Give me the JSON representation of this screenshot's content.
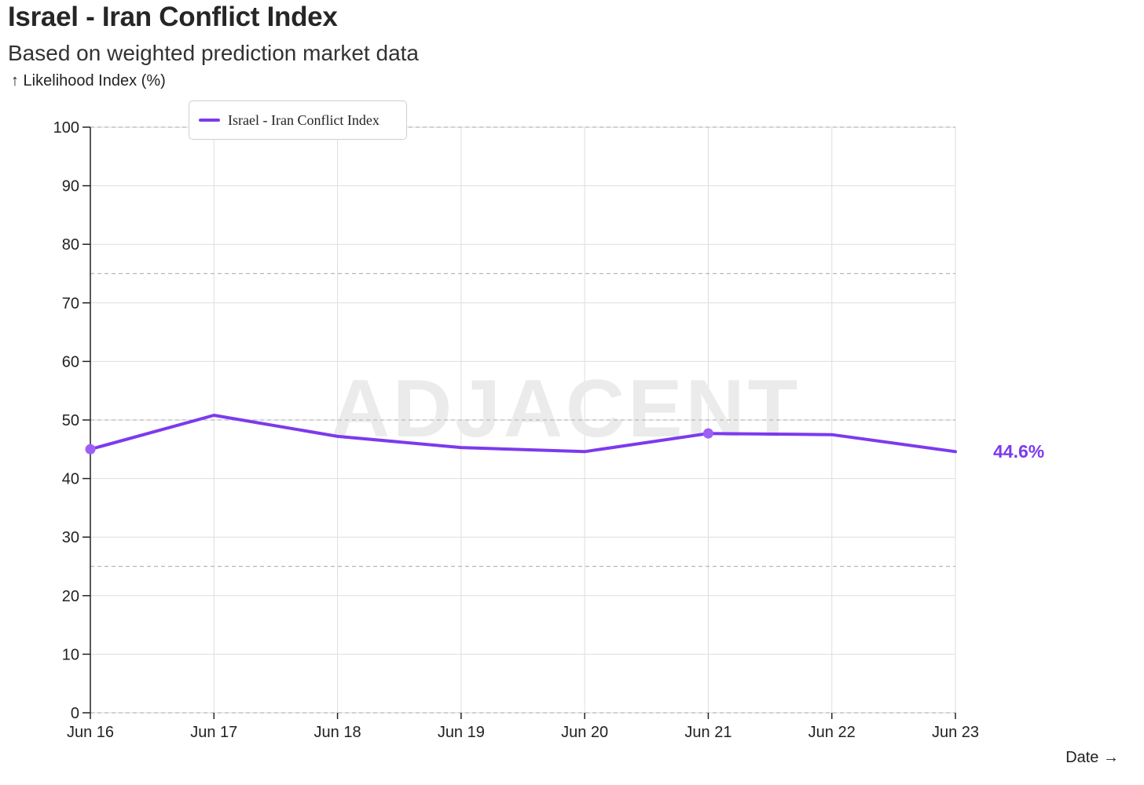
{
  "title": "Israel - Iran Conflict Index",
  "subtitle": "Based on weighted prediction market data",
  "ylabel": "↑ Likelihood Index (%)",
  "xlabel": "Date →",
  "watermark": "ADJACENT",
  "colors": {
    "line": "#7c3aed",
    "marker": "#9d5ff5",
    "grid": "#dedede",
    "reference": "#b8b8b8",
    "axis": "#222222"
  },
  "chart_data": {
    "type": "line",
    "categories": [
      "Jun 16",
      "Jun 17",
      "Jun 18",
      "Jun 19",
      "Jun 20",
      "Jun 21",
      "Jun 22",
      "Jun 23"
    ],
    "series": [
      {
        "name": "Israel - Iran Conflict Index",
        "values": [
          45.0,
          50.8,
          47.2,
          45.3,
          44.6,
          47.7,
          47.5,
          44.6
        ],
        "markers_at": [
          0,
          5
        ]
      }
    ],
    "yticks": [
      0,
      10,
      20,
      30,
      40,
      50,
      60,
      70,
      80,
      90,
      100
    ],
    "ylim": [
      0,
      100
    ],
    "reference_lines": [
      25,
      50,
      75,
      100,
      0
    ],
    "last_value_label": "44.6%",
    "legend_position": "top-left",
    "grid": true
  }
}
